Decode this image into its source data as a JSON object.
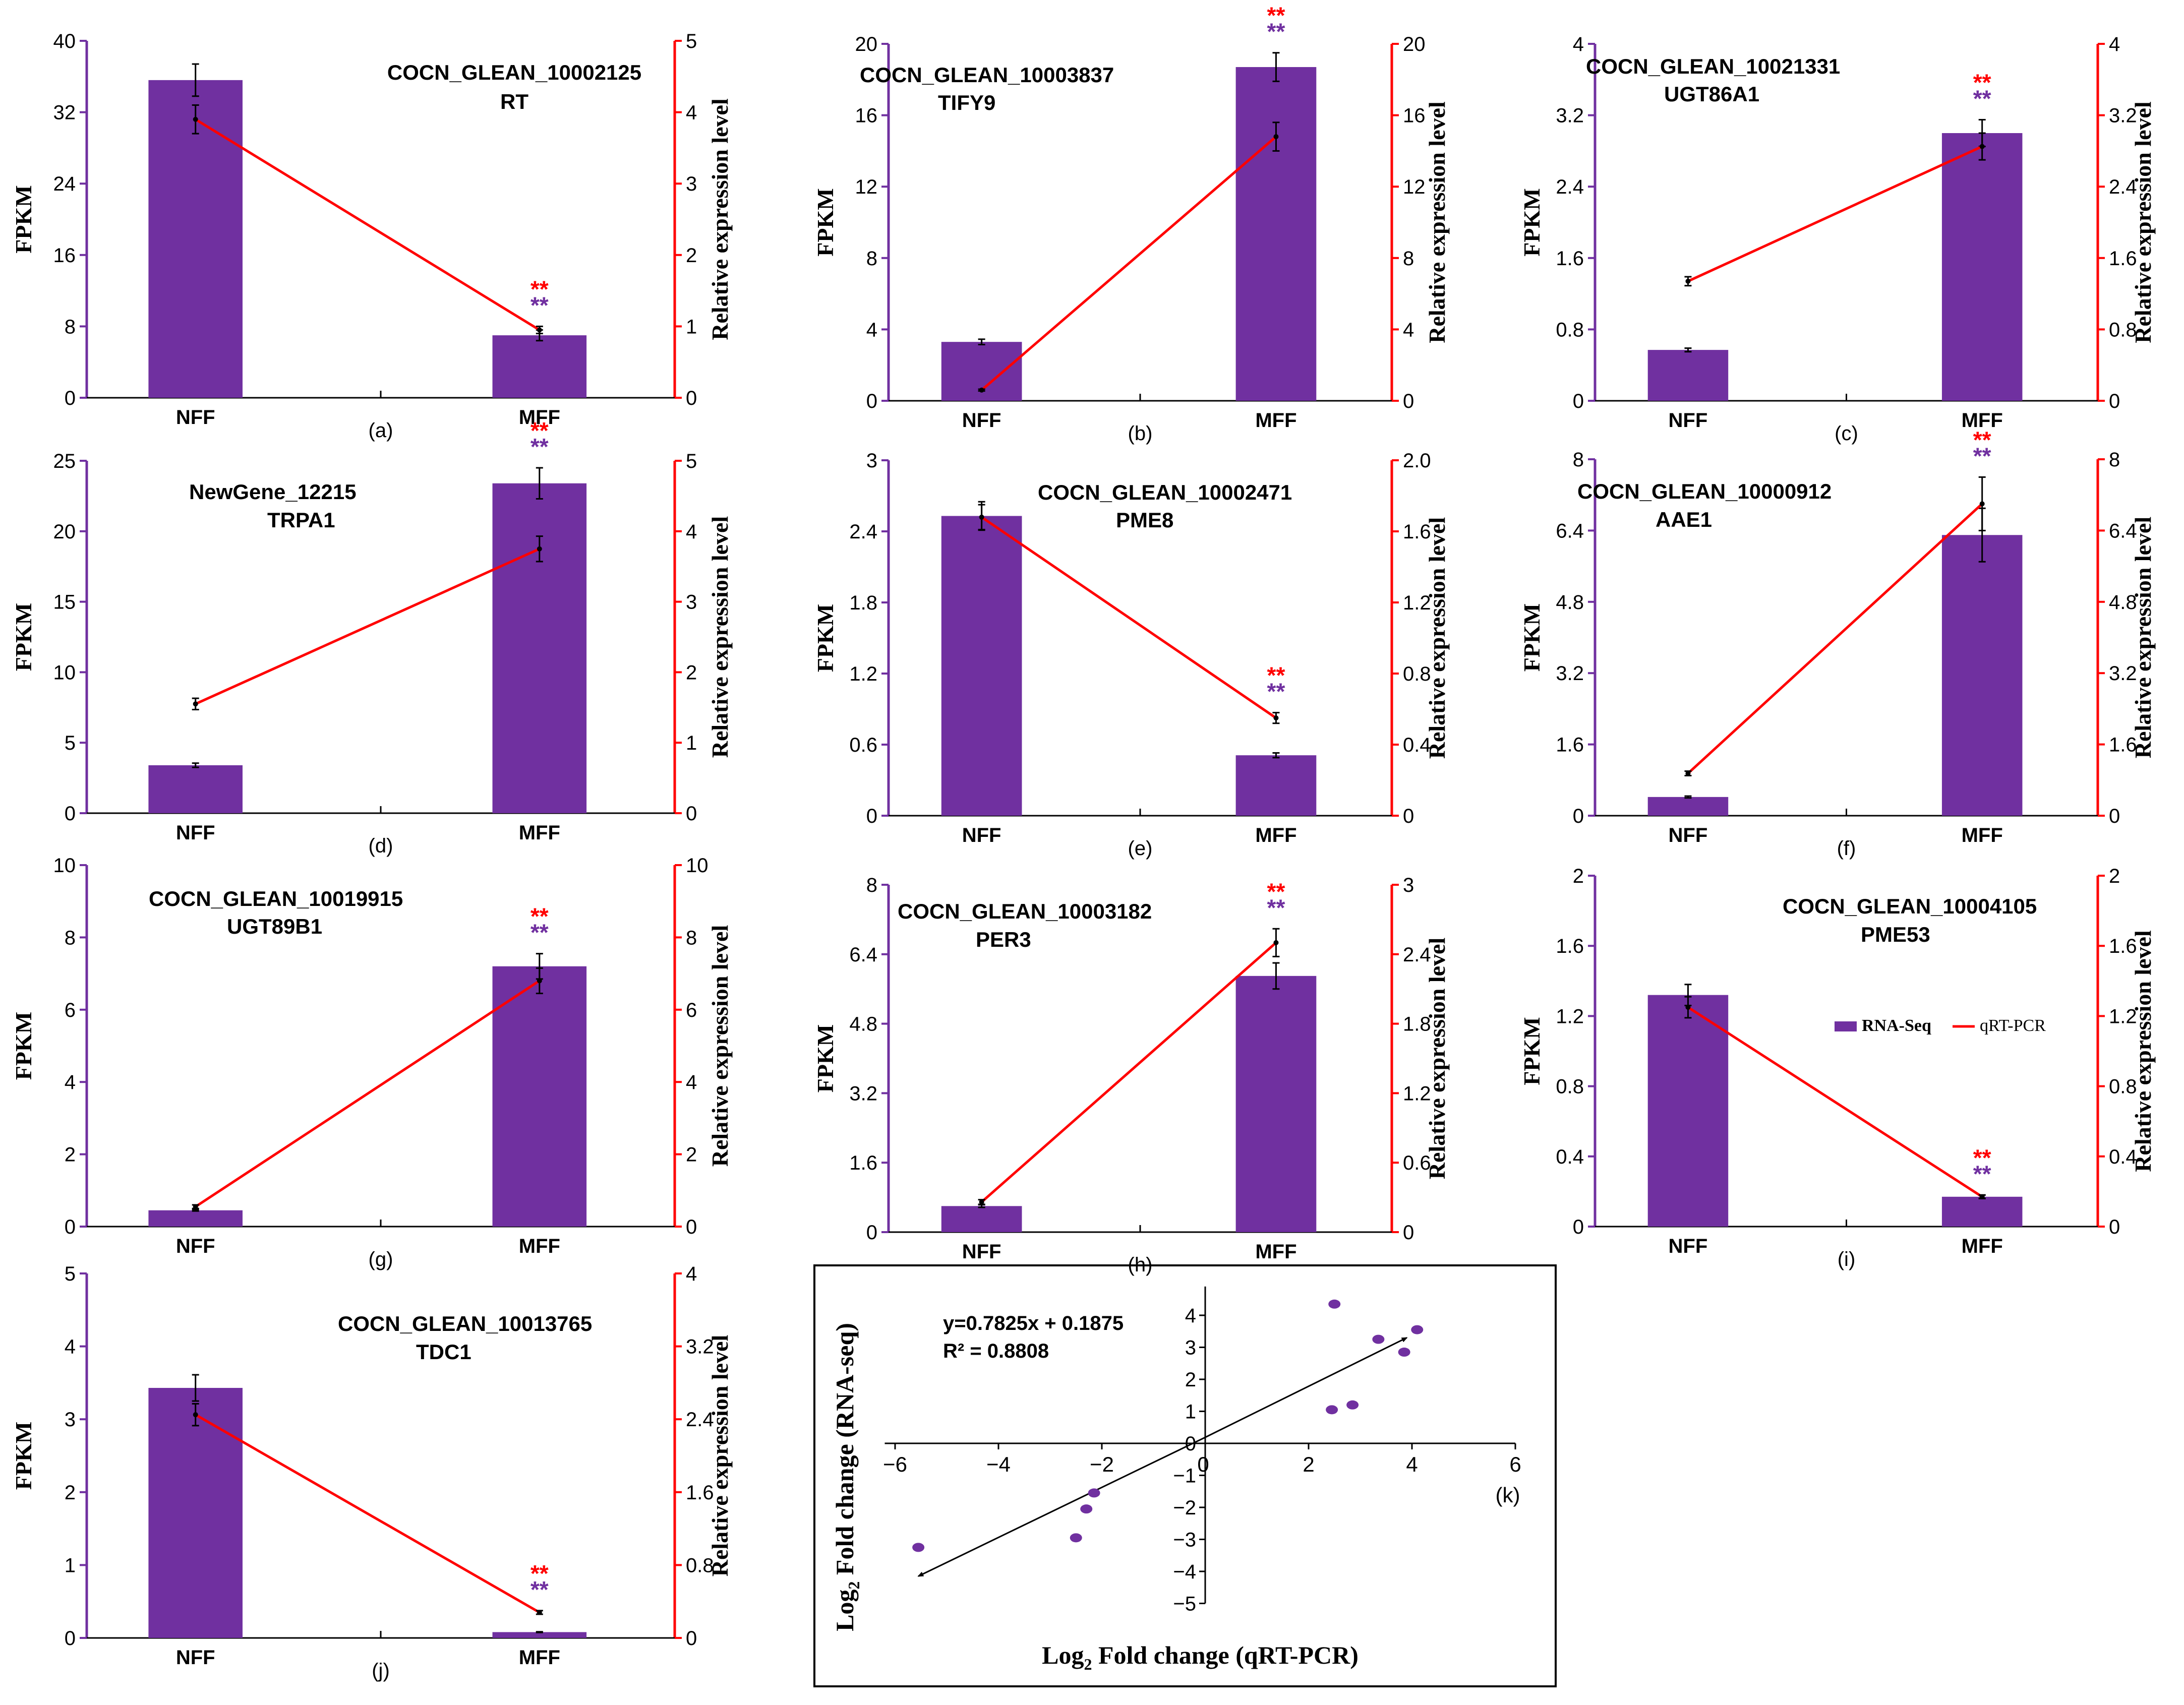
{
  "colors": {
    "bar": "#7030A0",
    "line": "#FF0000",
    "axis_left": "#7030A0",
    "axis_right": "#FF0000",
    "text": "#000000"
  },
  "chart_data": [
    {
      "type": "bar+line",
      "label": "(a)",
      "gene_id": "COCN_GLEAN_10002125",
      "gene_name": "RT",
      "categories": [
        "NFF",
        "MFF"
      ],
      "ylabel": "FPKM",
      "y2label": "Relative expression level",
      "ylim": [
        0,
        40
      ],
      "yticks": [
        0,
        8,
        16,
        24,
        32,
        40
      ],
      "y2lim": [
        0,
        5
      ],
      "y2ticks": [
        0,
        1,
        2,
        3,
        4,
        5
      ],
      "series": [
        {
          "name": "RNA-Seq",
          "values": [
            35.6,
            7.0
          ],
          "errors": [
            1.8,
            0.6
          ]
        },
        {
          "name": "qRT-PCR",
          "values": [
            3.9,
            0.95
          ],
          "errors": [
            0.2,
            0.05
          ]
        }
      ],
      "significance": [
        {
          "category": "MFF",
          "marks": [
            "**",
            "**"
          ]
        }
      ]
    },
    {
      "type": "bar+line",
      "label": "(b)",
      "gene_id": "COCN_GLEAN_10003837",
      "gene_name": "TIFY9",
      "categories": [
        "NFF",
        "MFF"
      ],
      "ylabel": "FPKM",
      "y2label": "Relative expression level",
      "ylim": [
        0,
        20
      ],
      "yticks": [
        0,
        4,
        8,
        12,
        16,
        20
      ],
      "y2lim": [
        0,
        20
      ],
      "y2ticks": [
        0,
        4,
        8,
        12,
        16,
        20
      ],
      "series": [
        {
          "name": "RNA-Seq",
          "values": [
            3.3,
            18.7
          ],
          "errors": [
            0.15,
            0.8
          ]
        },
        {
          "name": "qRT-PCR",
          "values": [
            0.6,
            14.8
          ],
          "errors": [
            0.05,
            0.8
          ]
        }
      ],
      "significance": [
        {
          "category": "MFF",
          "marks": [
            "**",
            "**"
          ]
        }
      ]
    },
    {
      "type": "bar+line",
      "label": "(c)",
      "gene_id": "COCN_GLEAN_10021331",
      "gene_name": "UGT86A1",
      "categories": [
        "NFF",
        "MFF"
      ],
      "ylabel": "FPKM",
      "y2label": "Relative expression level",
      "ylim": [
        0,
        4
      ],
      "yticks": [
        "0",
        "0.8",
        "1.6",
        "2.4",
        "3.2",
        "4"
      ],
      "y2lim": [
        0,
        4
      ],
      "y2ticks": [
        "0",
        "0.8",
        "1.6",
        "2.4",
        "3.2",
        "4"
      ],
      "series": [
        {
          "name": "RNA-Seq",
          "values": [
            0.57,
            3.0
          ],
          "errors": [
            0.02,
            0.15
          ]
        },
        {
          "name": "qRT-PCR",
          "values": [
            1.34,
            2.85
          ],
          "errors": [
            0.05,
            0.15
          ]
        }
      ],
      "significance": [
        {
          "category": "MFF",
          "marks": [
            "**",
            "**"
          ]
        }
      ]
    },
    {
      "type": "bar+line",
      "label": "(d)",
      "gene_id": "NewGene_12215",
      "gene_name": "TRPA1",
      "categories": [
        "NFF",
        "MFF"
      ],
      "ylabel": "FPKM",
      "y2label": "Relative expression level",
      "ylim": [
        0,
        25
      ],
      "yticks": [
        0,
        5,
        10,
        15,
        20,
        25
      ],
      "y2lim": [
        0,
        5
      ],
      "y2ticks": [
        0,
        1,
        2,
        3,
        4,
        5
      ],
      "series": [
        {
          "name": "RNA-Seq",
          "values": [
            3.4,
            23.4
          ],
          "errors": [
            0.15,
            1.1
          ]
        },
        {
          "name": "qRT-PCR",
          "values": [
            1.55,
            3.75
          ],
          "errors": [
            0.08,
            0.18
          ]
        }
      ],
      "significance": [
        {
          "category": "MFF",
          "marks": [
            "**",
            "**"
          ]
        }
      ]
    },
    {
      "type": "bar+line",
      "label": "(e)",
      "gene_id": "COCN_GLEAN_10002471",
      "gene_name": "PME8",
      "categories": [
        "NFF",
        "MFF"
      ],
      "ylabel": "FPKM",
      "y2label": "Relative expression level",
      "ylim": [
        0,
        3
      ],
      "yticks": [
        "0",
        "0.6",
        "1.2",
        "1.8",
        "2.4",
        "3"
      ],
      "y2lim": [
        0,
        2
      ],
      "y2ticks": [
        "0",
        "0.4",
        "0.8",
        "1.2",
        "1.6",
        "2.0"
      ],
      "series": [
        {
          "name": "RNA-Seq",
          "values": [
            2.53,
            0.51
          ],
          "errors": [
            0.12,
            0.02
          ]
        },
        {
          "name": "qRT-PCR",
          "values": [
            1.68,
            0.55
          ],
          "errors": [
            0.07,
            0.03
          ]
        }
      ],
      "significance": [
        {
          "category": "MFF",
          "marks": [
            "**",
            "**"
          ]
        }
      ]
    },
    {
      "type": "bar+line",
      "label": "(f)",
      "gene_id": "COCN_GLEAN_10000912",
      "gene_name": "AAE1",
      "categories": [
        "NFF",
        "MFF"
      ],
      "ylabel": "FPKM",
      "y2label": "Relative expression level",
      "ylim": [
        0,
        8
      ],
      "yticks": [
        "0",
        "1.6",
        "3.2",
        "4.8",
        "6.4",
        "8"
      ],
      "y2lim": [
        0,
        8
      ],
      "y2ticks": [
        "0",
        "1.6",
        "3.2",
        "4.8",
        "6.4",
        "8"
      ],
      "series": [
        {
          "name": "RNA-Seq",
          "values": [
            0.42,
            6.3
          ],
          "errors": [
            0.02,
            0.6
          ]
        },
        {
          "name": "qRT-PCR",
          "values": [
            0.95,
            7.0
          ],
          "errors": [
            0.05,
            0.6
          ]
        }
      ],
      "significance": [
        {
          "category": "MFF",
          "marks": [
            "**",
            "**"
          ]
        }
      ]
    },
    {
      "type": "bar+line",
      "label": "(g)",
      "gene_id": "COCN_GLEAN_10019915",
      "gene_name": "UGT89B1",
      "categories": [
        "NFF",
        "MFF"
      ],
      "ylabel": "FPKM",
      "y2label": "Relative expression level",
      "ylim": [
        0,
        10
      ],
      "yticks": [
        0,
        2,
        4,
        6,
        8,
        10
      ],
      "y2lim": [
        0,
        10
      ],
      "y2ticks": [
        0,
        2,
        4,
        6,
        8,
        10
      ],
      "series": [
        {
          "name": "RNA-Seq",
          "values": [
            0.45,
            7.2
          ],
          "errors": [
            0.02,
            0.35
          ]
        },
        {
          "name": "qRT-PCR",
          "values": [
            0.55,
            6.8
          ],
          "errors": [
            0.05,
            0.35
          ]
        }
      ],
      "significance": [
        {
          "category": "MFF",
          "marks": [
            "**",
            "**"
          ]
        }
      ]
    },
    {
      "type": "bar+line",
      "label": "(h)",
      "gene_id": "COCN_GLEAN_10003182",
      "gene_name": "PER3",
      "categories": [
        "NFF",
        "MFF"
      ],
      "ylabel": "FPKM",
      "y2label": "Relative expression level",
      "ylim": [
        0,
        8
      ],
      "yticks": [
        "0",
        "1.6",
        "3.2",
        "4.8",
        "6.4",
        "8"
      ],
      "y2lim": [
        0,
        3
      ],
      "y2ticks": [
        "0",
        "0.6",
        "1.2",
        "1.8",
        "2.4",
        "3"
      ],
      "series": [
        {
          "name": "RNA-Seq",
          "values": [
            0.6,
            5.9
          ],
          "errors": [
            0.03,
            0.3
          ]
        },
        {
          "name": "qRT-PCR",
          "values": [
            0.26,
            2.5
          ],
          "errors": [
            0.02,
            0.12
          ]
        }
      ],
      "significance": [
        {
          "category": "MFF",
          "marks": [
            "**",
            "**"
          ]
        }
      ]
    },
    {
      "type": "bar+line",
      "label": "(i)",
      "gene_id": "COCN_GLEAN_10004105",
      "gene_name": "PME53",
      "categories": [
        "NFF",
        "MFF"
      ],
      "ylabel": "FPKM",
      "y2label": "Relative expression level",
      "ylim": [
        0,
        2
      ],
      "yticks": [
        "0",
        "0.4",
        "0.8",
        "1.2",
        "1.6",
        "2"
      ],
      "y2lim": [
        0,
        2
      ],
      "y2ticks": [
        "0",
        "0.4",
        "0.8",
        "1.2",
        "1.6",
        "2"
      ],
      "series": [
        {
          "name": "RNA-Seq",
          "values": [
            1.32,
            0.17
          ],
          "errors": [
            0.06,
            0.01
          ]
        },
        {
          "name": "qRT-PCR",
          "values": [
            1.25,
            0.17
          ],
          "errors": [
            0.06,
            0.01
          ]
        }
      ],
      "significance": [
        {
          "category": "MFF",
          "marks": [
            "**",
            "**"
          ]
        }
      ],
      "legend": {
        "placement": "right",
        "bar_label": "RNA-Seq",
        "line_label": "qRT-PCR"
      }
    },
    {
      "type": "bar+line",
      "label": "(j)",
      "gene_id": "COCN_GLEAN_10013765",
      "gene_name": "TDC1",
      "categories": [
        "NFF",
        "MFF"
      ],
      "ylabel": "FPKM",
      "y2label": "Relative expression level",
      "ylim": [
        0,
        5
      ],
      "yticks": [
        0,
        1,
        2,
        3,
        4,
        5
      ],
      "y2lim": [
        0,
        4
      ],
      "y2ticks": [
        "0",
        "0.8",
        "1.6",
        "2.4",
        "3.2",
        "4"
      ],
      "series": [
        {
          "name": "RNA-Seq",
          "values": [
            3.43,
            0.08
          ],
          "errors": [
            0.18,
            0.005
          ]
        },
        {
          "name": "qRT-PCR",
          "values": [
            2.45,
            0.28
          ],
          "errors": [
            0.12,
            0.02
          ]
        }
      ],
      "significance": [
        {
          "category": "MFF",
          "marks": [
            "**",
            "**"
          ]
        }
      ]
    },
    {
      "type": "scatter",
      "label": "(k)",
      "xlabel_main": "Log",
      "xlabel_sub": "2",
      "xlabel_tail": " Fold change (qRT-PCR)",
      "ylabel_main": "Log",
      "ylabel_sub": "2",
      "ylabel_tail": " Fold change (RNA-seq)",
      "equation": "y=0.7825x + 0.1875",
      "r2": "R² = 0.8808",
      "xlim": [
        -6,
        6
      ],
      "ylim": [
        -5,
        5
      ],
      "xticks": [
        "−6",
        "−4",
        "−2",
        "0",
        "2",
        "4",
        "6"
      ],
      "yticks": [
        "−5",
        "−4",
        "−3",
        "−2",
        "−1",
        "0",
        "1",
        "2",
        "3",
        "4"
      ],
      "points": [
        [
          2.5,
          4.35
        ],
        [
          3.35,
          3.25
        ],
        [
          4.1,
          3.55
        ],
        [
          3.85,
          2.85
        ],
        [
          2.45,
          1.05
        ],
        [
          2.85,
          1.2
        ],
        [
          -2.15,
          -1.55
        ],
        [
          -2.3,
          -2.05
        ],
        [
          -2.5,
          -2.95
        ],
        [
          -5.55,
          -3.25
        ]
      ],
      "fit_line": {
        "x": [
          -5.55,
          3.9
        ],
        "y": [
          -4.15,
          3.3
        ]
      }
    }
  ]
}
